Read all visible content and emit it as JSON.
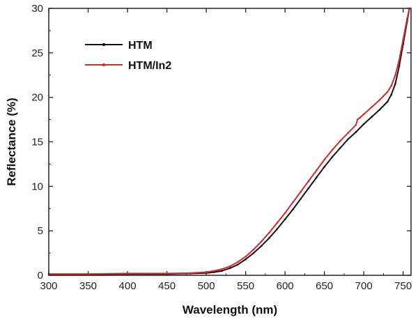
{
  "chart_data": {
    "type": "line",
    "title": "",
    "xlabel": "Wavelength (nm)",
    "ylabel": "Reflectance (%)",
    "xlim": [
      300,
      760
    ],
    "ylim": [
      0,
      30
    ],
    "xticks": [
      300,
      350,
      400,
      450,
      500,
      550,
      600,
      650,
      700,
      750
    ],
    "yticks": [
      0,
      5,
      10,
      15,
      20,
      25,
      30
    ],
    "grid": false,
    "legend_position": "top-left",
    "series": [
      {
        "name": "HTM",
        "color": "#111111",
        "x": [
          300,
          350,
          400,
          450,
          480,
          500,
          510,
          520,
          530,
          540,
          550,
          560,
          570,
          580,
          590,
          600,
          610,
          620,
          630,
          640,
          650,
          660,
          670,
          680,
          690,
          700,
          710,
          720,
          730,
          735,
          740,
          745,
          750,
          755,
          758
        ],
        "y": [
          0.1,
          0.1,
          0.15,
          0.15,
          0.2,
          0.25,
          0.35,
          0.5,
          0.8,
          1.2,
          1.8,
          2.5,
          3.3,
          4.2,
          5.2,
          6.3,
          7.4,
          8.6,
          9.8,
          11.0,
          12.2,
          13.3,
          14.3,
          15.3,
          16.1,
          17.0,
          17.8,
          18.6,
          19.5,
          20.3,
          21.5,
          23.5,
          26.0,
          28.5,
          30.0
        ]
      },
      {
        "name": "HTM/In2",
        "color": "#d42a2a",
        "x": [
          300,
          350,
          400,
          450,
          480,
          500,
          510,
          520,
          530,
          540,
          550,
          560,
          570,
          580,
          590,
          600,
          610,
          620,
          630,
          640,
          650,
          660,
          670,
          680,
          690,
          692,
          695,
          700,
          710,
          720,
          730,
          735,
          740,
          745,
          750,
          755,
          758
        ],
        "y": [
          0.15,
          0.15,
          0.2,
          0.2,
          0.25,
          0.35,
          0.5,
          0.7,
          1.0,
          1.5,
          2.1,
          2.9,
          3.8,
          4.8,
          5.9,
          7.0,
          8.2,
          9.4,
          10.6,
          11.8,
          13.0,
          14.1,
          15.1,
          16.0,
          16.9,
          17.5,
          17.7,
          18.1,
          18.9,
          19.7,
          20.6,
          21.3,
          22.5,
          24.2,
          26.5,
          28.8,
          30.0
        ]
      }
    ]
  }
}
